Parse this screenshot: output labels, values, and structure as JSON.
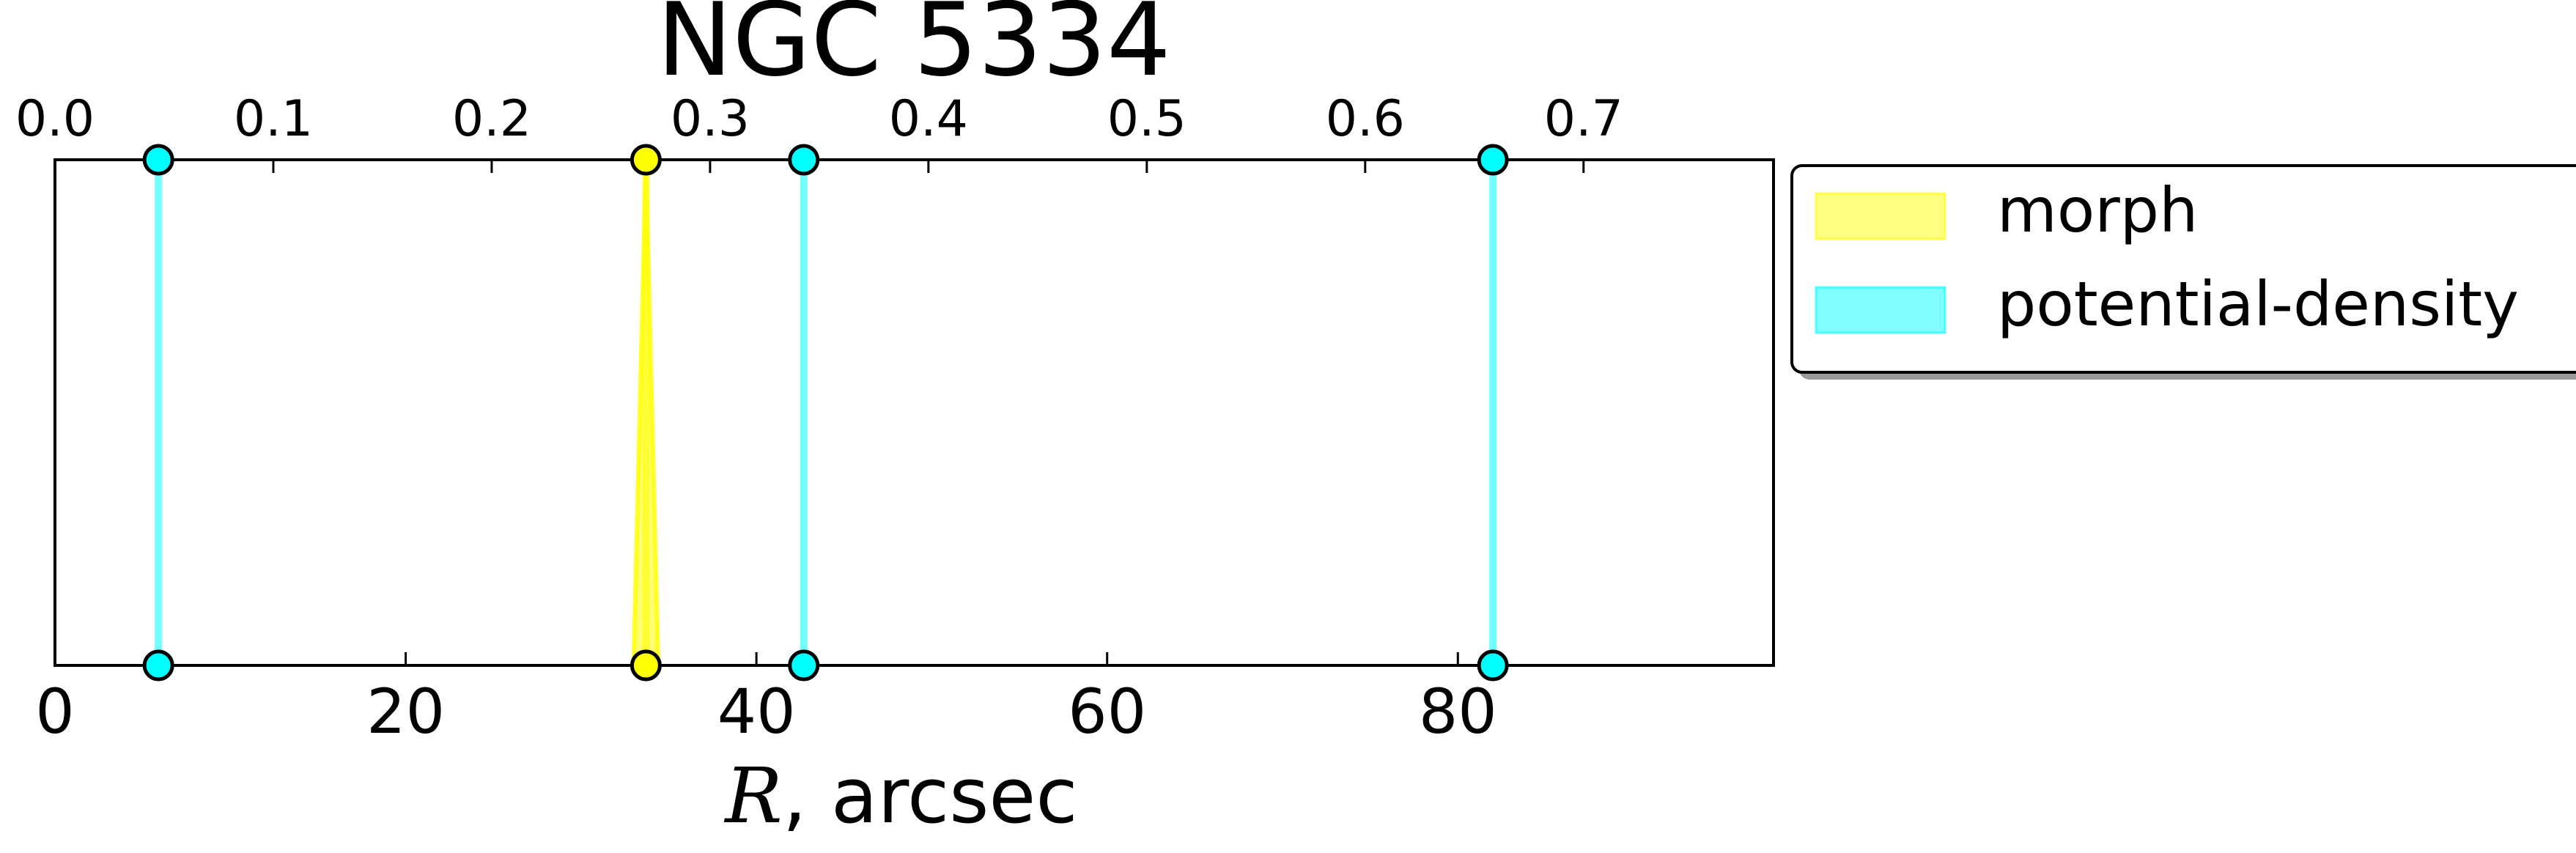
{
  "chart_data": {
    "type": "line",
    "title": "NGC 5334",
    "xlabel_var": "R",
    "xlabel_unit": ", arcsec",
    "xlim": [
      0,
      98
    ],
    "x_ticks": [
      0,
      20,
      40,
      60,
      80
    ],
    "top_axis": {
      "xlim": [
        0,
        0.787
      ],
      "ticks": [
        0.0,
        0.1,
        0.2,
        0.3,
        0.4,
        0.5,
        0.6,
        0.7
      ],
      "tick_labels": [
        "0.0",
        "0.1",
        "0.2",
        "0.3",
        "0.4",
        "0.5",
        "0.6",
        "0.7"
      ]
    },
    "grid": false,
    "legend_placement": "outside-top-right",
    "series": [
      {
        "name": "morph",
        "color": "#ffff00",
        "edge_color": "#000000",
        "segments": [
          {
            "x_top": 33.7,
            "x_bottom_low": 33.0,
            "x_bottom_high": 34.4,
            "marker_x": 33.7
          }
        ]
      },
      {
        "name": "potential-density",
        "color": "#00ffff",
        "edge_color": "#000000",
        "segments": [
          {
            "x_top": 5.9,
            "x_bottom_low": 5.9,
            "x_bottom_high": 5.9,
            "marker_x": 5.9
          },
          {
            "x_top": 42.7,
            "x_bottom_low": 42.7,
            "x_bottom_high": 42.7,
            "marker_x": 42.7
          },
          {
            "x_top": 82.0,
            "x_bottom_low": 82.0,
            "x_bottom_high": 82.0,
            "marker_x": 82.0
          }
        ]
      }
    ]
  }
}
